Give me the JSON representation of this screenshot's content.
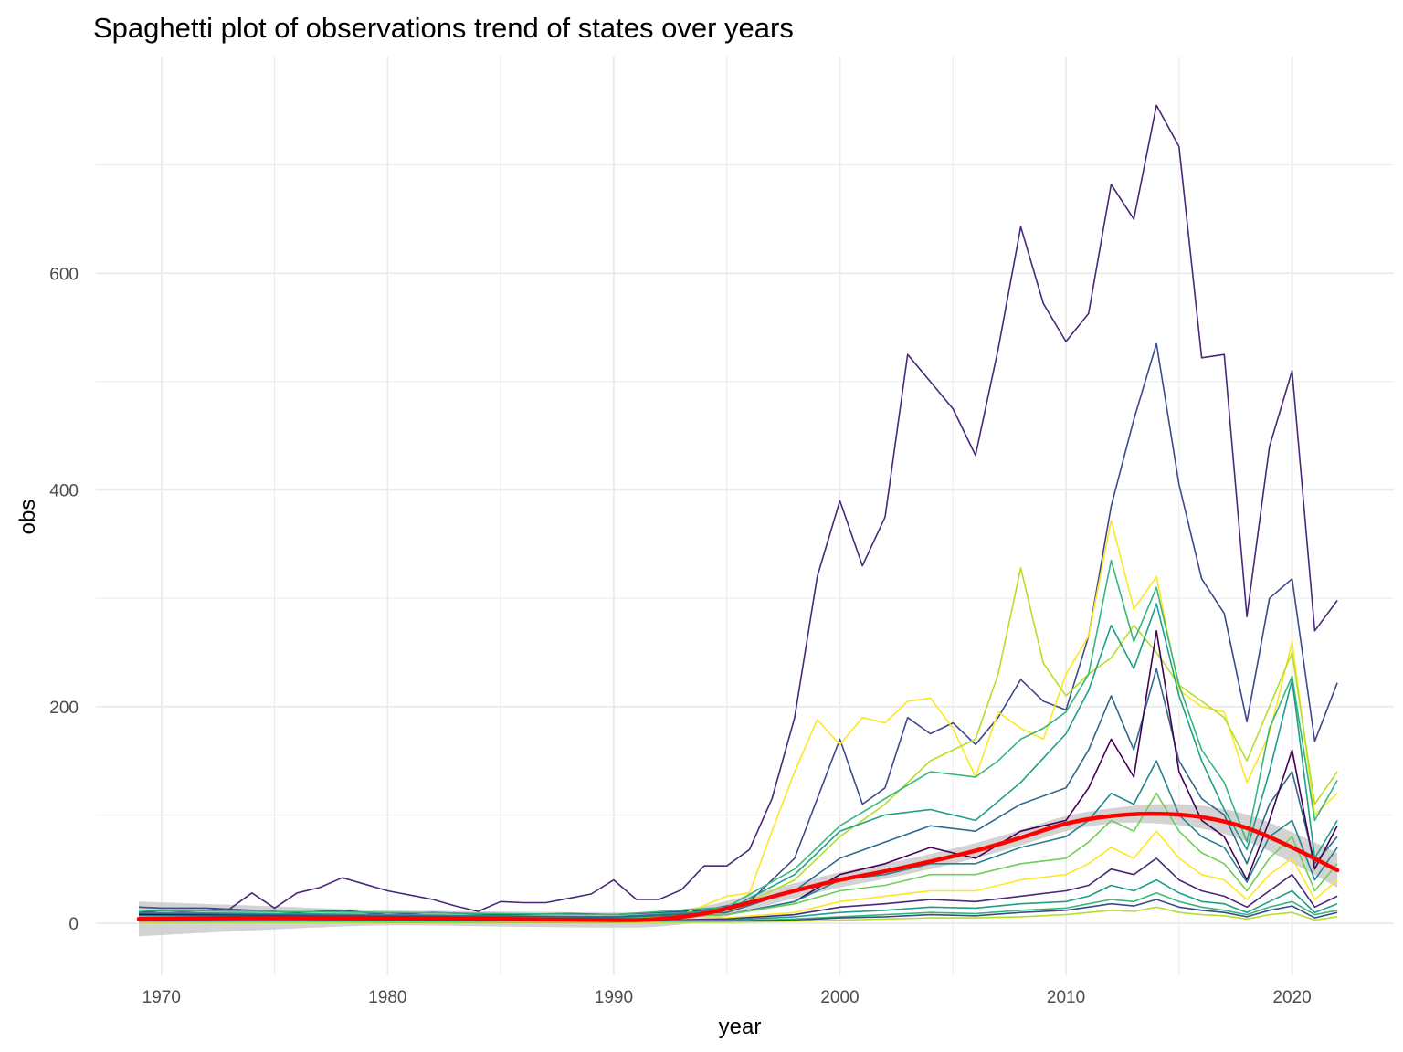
{
  "chart_data": {
    "type": "line",
    "title": "Spaghetti plot of observations trend of states over years",
    "xlabel": "year",
    "ylabel": "obs",
    "xlim": [
      1967.1,
      2024.5
    ],
    "ylim": [
      -48,
      800
    ],
    "x_ticks": [
      1970,
      1980,
      1990,
      2000,
      2010,
      2020
    ],
    "y_ticks": [
      0,
      200,
      400,
      600
    ],
    "grid": true,
    "legend": "none",
    "colors": {
      "trend": "#ff0000",
      "ribbon": "#c4c4c4",
      "grid": "#ebebeb",
      "palette": [
        "#440154",
        "#482878",
        "#3e4989",
        "#31688e",
        "#26828e",
        "#1f9e89",
        "#35b779",
        "#6ece58",
        "#b5de2b",
        "#fde725"
      ]
    },
    "series": [
      {
        "color": "#482878",
        "x": [
          1969,
          1970,
          1971,
          1972,
          1973,
          1974,
          1975,
          1976,
          1977,
          1978,
          1979,
          1980,
          1981,
          1982,
          1983,
          1984,
          1985,
          1986,
          1987,
          1988,
          1989,
          1990,
          1991,
          1992,
          1993,
          1994,
          1995,
          1996,
          1997,
          1998,
          1999,
          2000,
          2001,
          2002,
          2003,
          2004,
          2005,
          2006,
          2007,
          2008,
          2009,
          2010,
          2011,
          2012,
          2013,
          2014,
          2015,
          2016,
          2017,
          2018,
          2019,
          2020,
          2021,
          2022
        ],
        "values": [
          10,
          12,
          11,
          12,
          13,
          28,
          14,
          28,
          33,
          42,
          36,
          30,
          26,
          22,
          16,
          11,
          20,
          19,
          19,
          23,
          27,
          40,
          22,
          22,
          31,
          53,
          53,
          68,
          115,
          190,
          320,
          390,
          330,
          375,
          525,
          500,
          475,
          432,
          530,
          643,
          572,
          537,
          563,
          682,
          650,
          755,
          717,
          522,
          525,
          283,
          440,
          510,
          270,
          298
        ]
      },
      {
        "color": "#3e4989",
        "x": [
          1969,
          1970,
          1972,
          1974,
          1976,
          1978,
          1980,
          1982,
          1985,
          1988,
          1990,
          1992,
          1994,
          1996,
          1998,
          2000,
          2001,
          2002,
          2003,
          2004,
          2005,
          2006,
          2007,
          2008,
          2009,
          2010,
          2011,
          2012,
          2013,
          2014,
          2015,
          2016,
          2017,
          2018,
          2019,
          2020,
          2021,
          2022
        ],
        "values": [
          15,
          14,
          14,
          12,
          10,
          12,
          8,
          10,
          8,
          9,
          8,
          10,
          12,
          20,
          60,
          170,
          110,
          125,
          190,
          175,
          185,
          165,
          190,
          225,
          205,
          197,
          265,
          385,
          465,
          535,
          405,
          318,
          286,
          186,
          300,
          318,
          168,
          222
        ]
      },
      {
        "color": "#fde725",
        "x": [
          1969,
          1975,
          1980,
          1985,
          1990,
          1993,
          1995,
          1996,
          1997,
          1998,
          1999,
          2000,
          2001,
          2002,
          2003,
          2004,
          2005,
          2006,
          2007,
          2008,
          2009,
          2010,
          2011,
          2012,
          2013,
          2014,
          2015,
          2016,
          2017,
          2018,
          2019,
          2020,
          2021,
          2022
        ],
        "values": [
          8,
          8,
          7,
          6,
          5,
          8,
          25,
          28,
          85,
          140,
          188,
          165,
          190,
          185,
          205,
          208,
          180,
          135,
          195,
          180,
          170,
          230,
          265,
          372,
          290,
          320,
          215,
          200,
          195,
          130,
          175,
          260,
          100,
          120
        ]
      },
      {
        "color": "#b5de2b",
        "x": [
          1969,
          1980,
          1990,
          1995,
          1998,
          2000,
          2002,
          2004,
          2006,
          2007,
          2008,
          2009,
          2010,
          2011,
          2012,
          2013,
          2014,
          2015,
          2016,
          2017,
          2018,
          2019,
          2020,
          2021,
          2022
        ],
        "values": [
          6,
          6,
          5,
          10,
          40,
          80,
          110,
          150,
          170,
          230,
          328,
          240,
          210,
          230,
          245,
          275,
          250,
          220,
          205,
          190,
          150,
          200,
          250,
          110,
          140
        ]
      },
      {
        "color": "#35b779",
        "x": [
          1969,
          1980,
          1990,
          1995,
          1998,
          2000,
          2002,
          2004,
          2006,
          2007,
          2008,
          2009,
          2010,
          2011,
          2012,
          2013,
          2014,
          2015,
          2016,
          2017,
          2018,
          2019,
          2020,
          2021,
          2022
        ],
        "values": [
          12,
          10,
          8,
          15,
          50,
          90,
          115,
          140,
          135,
          150,
          170,
          180,
          195,
          230,
          335,
          260,
          310,
          220,
          160,
          130,
          75,
          180,
          228,
          95,
          132
        ]
      },
      {
        "color": "#1f9e89",
        "x": [
          1969,
          1980,
          1990,
          1995,
          1998,
          2000,
          2002,
          2004,
          2006,
          2008,
          2010,
          2011,
          2012,
          2013,
          2014,
          2015,
          2016,
          2017,
          2018,
          2019,
          2020,
          2021,
          2022
        ],
        "values": [
          10,
          8,
          6,
          12,
          45,
          85,
          100,
          105,
          95,
          130,
          175,
          215,
          275,
          235,
          295,
          210,
          150,
          105,
          68,
          140,
          225,
          60,
          95
        ]
      },
      {
        "color": "#31688e",
        "x": [
          1969,
          1980,
          1990,
          1995,
          1998,
          2000,
          2002,
          2004,
          2006,
          2008,
          2010,
          2011,
          2012,
          2013,
          2014,
          2015,
          2016,
          2017,
          2018,
          2019,
          2020,
          2021,
          2022
        ],
        "values": [
          9,
          7,
          6,
          10,
          30,
          60,
          75,
          90,
          85,
          110,
          125,
          160,
          210,
          160,
          235,
          150,
          115,
          100,
          55,
          110,
          140,
          55,
          80
        ]
      },
      {
        "color": "#440154",
        "x": [
          1969,
          1980,
          1990,
          1995,
          1998,
          2000,
          2002,
          2004,
          2006,
          2008,
          2010,
          2011,
          2012,
          2013,
          2014,
          2015,
          2016,
          2017,
          2018,
          2019,
          2020,
          2021,
          2022
        ],
        "values": [
          8,
          6,
          5,
          8,
          20,
          45,
          55,
          70,
          60,
          85,
          95,
          125,
          170,
          135,
          270,
          140,
          95,
          80,
          40,
          95,
          160,
          50,
          90
        ]
      },
      {
        "color": "#26828e",
        "x": [
          1969,
          1980,
          1990,
          1995,
          1998,
          2000,
          2002,
          2004,
          2006,
          2008,
          2010,
          2011,
          2012,
          2013,
          2014,
          2015,
          2016,
          2017,
          2018,
          2019,
          2020,
          2021,
          2022
        ],
        "values": [
          7,
          6,
          5,
          8,
          20,
          40,
          45,
          55,
          55,
          70,
          80,
          95,
          120,
          110,
          150,
          100,
          80,
          70,
          38,
          80,
          95,
          40,
          70
        ]
      },
      {
        "color": "#6ece58",
        "x": [
          1969,
          1980,
          1990,
          1995,
          1998,
          2000,
          2002,
          2004,
          2006,
          2008,
          2010,
          2011,
          2012,
          2013,
          2014,
          2015,
          2016,
          2017,
          2018,
          2019,
          2020,
          2021,
          2022
        ],
        "values": [
          6,
          5,
          4,
          8,
          18,
          30,
          35,
          45,
          45,
          55,
          60,
          75,
          95,
          85,
          120,
          85,
          65,
          55,
          30,
          60,
          80,
          30,
          55
        ]
      },
      {
        "color": "#fde725",
        "x": [
          1969,
          1980,
          1990,
          1995,
          1998,
          2000,
          2002,
          2004,
          2006,
          2008,
          2010,
          2011,
          2012,
          2013,
          2014,
          2015,
          2016,
          2017,
          2018,
          2019,
          2020,
          2021,
          2022
        ],
        "values": [
          5,
          4,
          3,
          5,
          10,
          20,
          25,
          30,
          30,
          40,
          45,
          55,
          70,
          60,
          85,
          60,
          45,
          40,
          22,
          45,
          60,
          22,
          40
        ]
      },
      {
        "color": "#482878",
        "x": [
          1969,
          1980,
          1990,
          1995,
          1998,
          2000,
          2002,
          2004,
          2006,
          2008,
          2010,
          2011,
          2012,
          2013,
          2014,
          2015,
          2016,
          2017,
          2018,
          2019,
          2020,
          2021,
          2022
        ],
        "values": [
          4,
          3,
          2,
          4,
          8,
          15,
          18,
          22,
          20,
          25,
          30,
          35,
          50,
          45,
          60,
          40,
          30,
          25,
          15,
          30,
          45,
          15,
          25
        ]
      },
      {
        "color": "#1f9e89",
        "x": [
          1969,
          1980,
          1990,
          1995,
          1998,
          2000,
          2002,
          2004,
          2006,
          2008,
          2010,
          2011,
          2012,
          2013,
          2014,
          2015,
          2016,
          2017,
          2018,
          2019,
          2020,
          2021,
          2022
        ],
        "values": [
          3,
          2,
          2,
          3,
          6,
          10,
          12,
          15,
          14,
          18,
          20,
          25,
          35,
          30,
          40,
          28,
          20,
          18,
          10,
          20,
          30,
          10,
          18
        ]
      },
      {
        "color": "#35b779",
        "x": [
          1969,
          1980,
          1990,
          1995,
          1998,
          2000,
          2002,
          2004,
          2006,
          2008,
          2010,
          2011,
          2012,
          2013,
          2014,
          2015,
          2016,
          2017,
          2018,
          2019,
          2020,
          2021,
          2022
        ],
        "values": [
          2,
          2,
          1,
          2,
          4,
          6,
          8,
          10,
          9,
          12,
          14,
          18,
          22,
          20,
          28,
          20,
          15,
          12,
          8,
          15,
          20,
          8,
          12
        ]
      },
      {
        "color": "#3e4989",
        "x": [
          1969,
          1980,
          1990,
          1995,
          1998,
          2000,
          2002,
          2004,
          2006,
          2008,
          2010,
          2011,
          2012,
          2013,
          2014,
          2015,
          2016,
          2017,
          2018,
          2019,
          2020,
          2021,
          2022
        ],
        "values": [
          2,
          1,
          1,
          2,
          3,
          5,
          6,
          8,
          7,
          10,
          12,
          15,
          18,
          16,
          22,
          15,
          12,
          10,
          6,
          12,
          16,
          5,
          10
        ]
      },
      {
        "color": "#b5de2b",
        "x": [
          1969,
          1980,
          1990,
          1995,
          1998,
          2000,
          2002,
          2004,
          2006,
          2008,
          2010,
          2011,
          2012,
          2013,
          2014,
          2015,
          2016,
          2017,
          2018,
          2019,
          2020,
          2021,
          2022
        ],
        "values": [
          1,
          1,
          1,
          1,
          2,
          3,
          4,
          5,
          5,
          6,
          8,
          10,
          12,
          11,
          15,
          10,
          8,
          7,
          4,
          8,
          10,
          3,
          6
        ]
      }
    ],
    "trend": {
      "x": [
        1969,
        1975,
        1980,
        1985,
        1990,
        1992,
        1994,
        1996,
        1998,
        2000,
        2002,
        2004,
        2006,
        2008,
        2010,
        2012,
        2014,
        2016,
        2018,
        2020,
        2022
      ],
      "values": [
        4,
        5,
        5,
        4,
        3,
        4,
        9,
        19,
        30,
        40,
        48,
        57,
        67,
        79,
        92,
        99,
        101,
        98,
        88,
        70,
        49
      ]
    }
  }
}
